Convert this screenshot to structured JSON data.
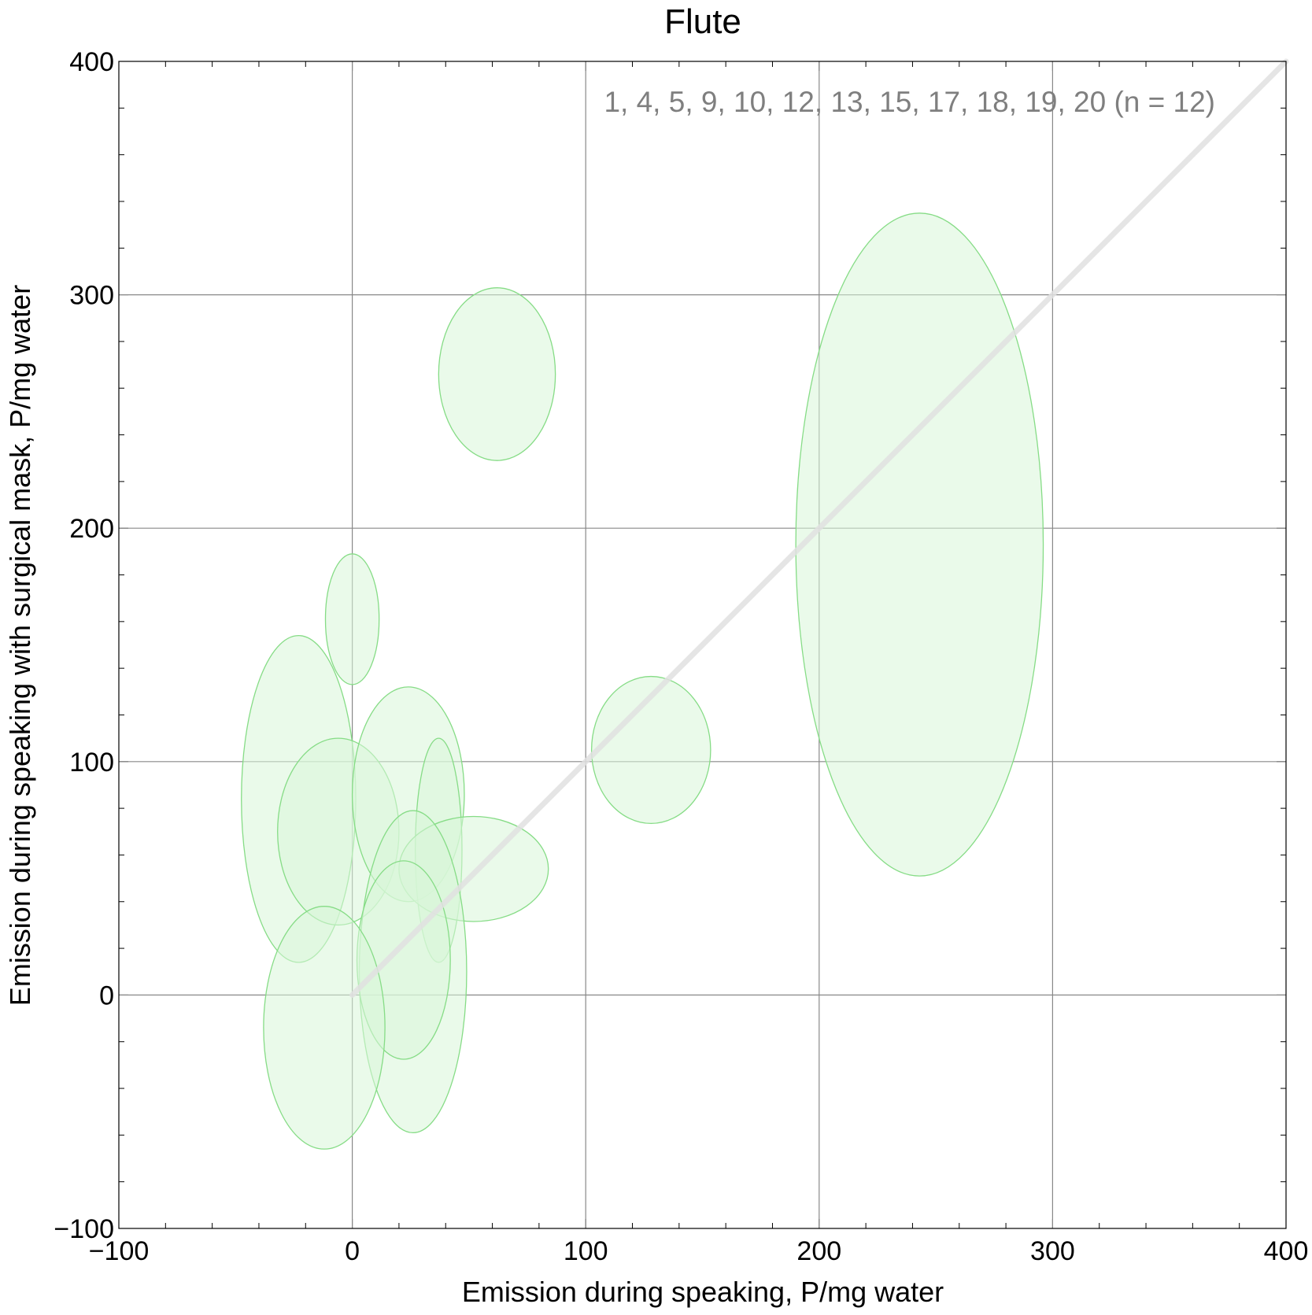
{
  "chart_data": {
    "type": "scatter",
    "title": "Flute",
    "xlabel": "Emission during speaking,   P/mg water",
    "ylabel": "Emission during speaking with surgical mask,   P/mg water",
    "annotation": "1, 4, 5, 9, 10, 12, 13, 15, 17, 18, 19, 20  (n = 12)",
    "xlim": [
      -100,
      400
    ],
    "ylim": [
      -100,
      400
    ],
    "x_ticks": [
      -100,
      0,
      100,
      200,
      300,
      400
    ],
    "y_ticks": [
      -100,
      0,
      100,
      200,
      300,
      400
    ],
    "x_tick_labels": [
      "−100",
      "0",
      "100",
      "200",
      "300",
      "400"
    ],
    "y_tick_labels": [
      "−100",
      "0",
      "100",
      "200",
      "300",
      "400"
    ],
    "grid": true,
    "diagonal": [
      [
        0,
        0
      ],
      [
        400,
        400
      ]
    ],
    "colors": {
      "ellipse_fill": "#d8f5d8",
      "ellipse_stroke": "#86dc86",
      "diagonal": "#e0e0e0",
      "grid": "#888888",
      "annotation": "#7f7f7f"
    },
    "ellipses": [
      {
        "x": 243,
        "y": 193,
        "rx": 53,
        "ry": 142
      },
      {
        "x": 62,
        "y": 266,
        "rx": 25,
        "ry": 37
      },
      {
        "x": 128,
        "y": 105,
        "rx": 25.5,
        "ry": 31.5
      },
      {
        "x": 0,
        "y": 161,
        "rx": 11.5,
        "ry": 28
      },
      {
        "x": -23,
        "y": 84,
        "rx": 24.5,
        "ry": 70
      },
      {
        "x": -6,
        "y": 70,
        "rx": 26,
        "ry": 40
      },
      {
        "x": 24,
        "y": 86,
        "rx": 24,
        "ry": 46
      },
      {
        "x": 37,
        "y": 62,
        "rx": 10,
        "ry": 48
      },
      {
        "x": 52,
        "y": 54,
        "rx": 32,
        "ry": 22.5
      },
      {
        "x": 26,
        "y": 10,
        "rx": 23,
        "ry": 69
      },
      {
        "x": 22,
        "y": 15,
        "rx": 20,
        "ry": 42.5
      },
      {
        "x": -12,
        "y": -14,
        "rx": 26,
        "ry": 52
      }
    ]
  }
}
